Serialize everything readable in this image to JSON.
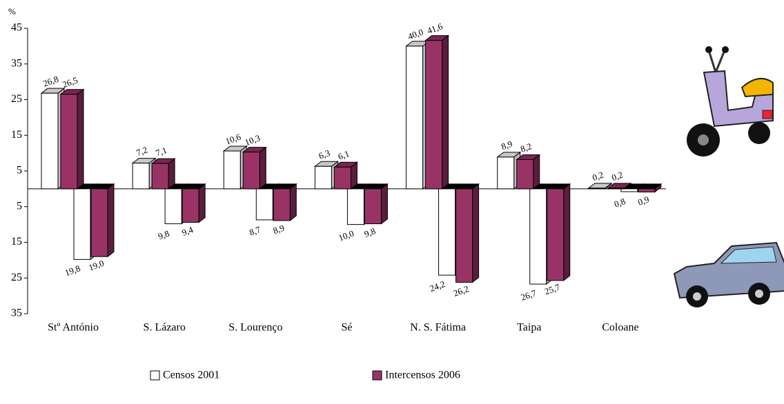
{
  "chart_data": {
    "type": "bar3d-split",
    "y_label": "%",
    "categories": [
      "Stº António",
      "S. Lázaro",
      "S. Lourenço",
      "Sé",
      "N. S. Fátima",
      "Taipa",
      "Coloane"
    ],
    "series": [
      {
        "name": "Censos 2001",
        "color": "#ffffff",
        "values": [
          26.8,
          7.2,
          10.6,
          6.3,
          40.0,
          8.9,
          0.2
        ],
        "value_labels": [
          "26,8",
          "7,2",
          "10,6",
          "6,3",
          "40,0",
          "8,9",
          "0,2"
        ],
        "values_below": [
          -19.8,
          -9.8,
          -8.7,
          -10.0,
          -24.2,
          -26.7,
          -0.8
        ],
        "value_labels_below": [
          "19,8",
          "9,8",
          "8,7",
          "10,0",
          "24,2",
          "26,7",
          "0,8"
        ]
      },
      {
        "name": "Intercensos 2006",
        "color": "#993366",
        "values": [
          26.5,
          7.1,
          10.3,
          6.1,
          41.6,
          8.2,
          0.2
        ],
        "value_labels": [
          "26,5",
          "7,1",
          "10,3",
          "6,1",
          "41,6",
          "8,2",
          "0,2"
        ],
        "values_below": [
          -19.0,
          -9.4,
          -8.9,
          -9.8,
          -26.2,
          -25.7,
          -0.9
        ],
        "value_labels_below": [
          "19,0",
          "9,4",
          "8,9",
          "9,8",
          "26,2",
          "25,7",
          "0,9"
        ]
      }
    ],
    "ylim": [
      -35,
      45
    ],
    "yticks": [
      45,
      35,
      25,
      15,
      5,
      {
        "value": -5,
        "label": "5"
      },
      {
        "value": -15,
        "label": "15"
      },
      {
        "value": -25,
        "label": "25"
      },
      {
        "value": -35,
        "label": "35"
      }
    ]
  }
}
